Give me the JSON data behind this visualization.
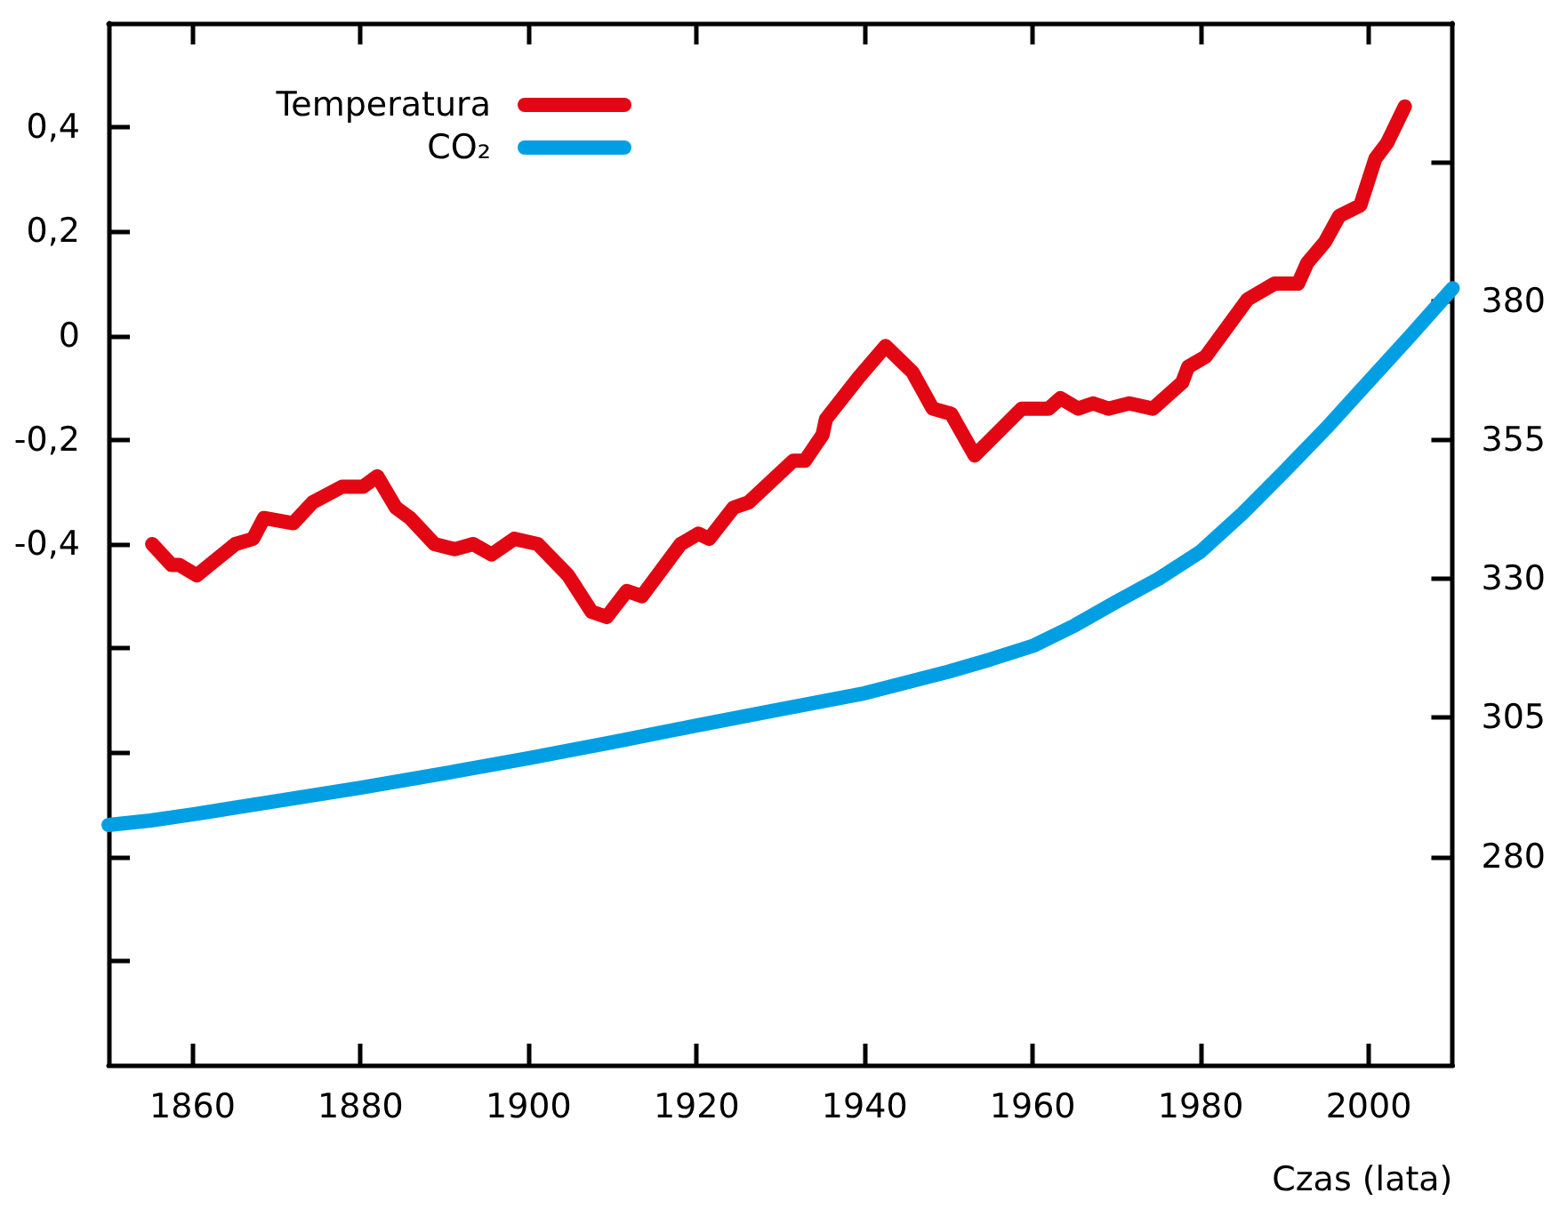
{
  "chart_data": {
    "type": "line",
    "xlabel": "Czas (lata)",
    "xlim": [
      1850,
      2010
    ],
    "xticks": [
      1860,
      1880,
      1900,
      1920,
      1940,
      1960,
      1980,
      2000
    ],
    "ylim": [
      -1.4,
      0.6
    ],
    "yticks": [
      {
        "value": -1.2,
        "label": null
      },
      {
        "value": -1.0,
        "label": null
      },
      {
        "value": -0.8,
        "label": null
      },
      {
        "value": -0.6,
        "label": null
      },
      {
        "value": -0.4,
        "label": "-0,4"
      },
      {
        "value": -0.2,
        "label": "-0,2"
      },
      0,
      {
        "value": 0.2,
        "label": "0,2"
      },
      {
        "value": 0.4,
        "label": "0,4"
      }
    ],
    "y2lim": [
      242.5,
      430
    ],
    "y2ticks": [
      280,
      305,
      330,
      355,
      380,
      {
        "value": 405,
        "label": null
      }
    ],
    "legend": "top left",
    "grid": false,
    "marker": "none",
    "line_style": "solid",
    "series": [
      {
        "name": "Temperatura",
        "color": "#e30613",
        "x": [
          1855.2,
          1857.5,
          1858.4,
          1860.5,
          1865.1,
          1867.2,
          1868.5,
          1872.0,
          1874.3,
          1877.8,
          1880.3,
          1882.0,
          1884.2,
          1885.9,
          1888.8,
          1891.2,
          1893.4,
          1895.6,
          1898.3,
          1901.1,
          1904.7,
          1907.5,
          1909.3,
          1911.7,
          1913.5,
          1918.1,
          1920.2,
          1921.5,
          1924.4,
          1926.2,
          1931.5,
          1932.9,
          1935.0,
          1935.4,
          1939.3,
          1942.5,
          1945.7,
          1948.1,
          1950.3,
          1953.1,
          1958.7,
          1961.9,
          1963.3,
          1965.4,
          1967.2,
          1969.0,
          1971.5,
          1974.3,
          1977.8,
          1978.5,
          1980.6,
          1985.6,
          1988.8,
          1991.6,
          1992.7,
          1994.8,
          1996.5,
          1999.0,
          2000.8,
          2002.2,
          2004.3
        ],
        "values": [
          -0.4,
          -0.44,
          -0.44,
          -0.46,
          -0.4,
          -0.39,
          -0.35,
          -0.36,
          -0.32,
          -0.29,
          -0.29,
          -0.27,
          -0.33,
          -0.35,
          -0.4,
          -0.41,
          -0.4,
          -0.42,
          -0.39,
          -0.4,
          -0.46,
          -0.53,
          -0.54,
          -0.49,
          -0.5,
          -0.4,
          -0.38,
          -0.39,
          -0.33,
          -0.32,
          -0.24,
          -0.24,
          -0.19,
          -0.16,
          -0.08,
          -0.02,
          -0.07,
          -0.14,
          -0.15,
          -0.23,
          -0.14,
          -0.14,
          -0.12,
          -0.14,
          -0.13,
          -0.14,
          -0.13,
          -0.14,
          -0.09,
          -0.06,
          -0.04,
          0.07,
          0.1,
          0.1,
          0.14,
          0.18,
          0.23,
          0.25,
          0.34,
          0.37,
          0.44
        ]
      },
      {
        "name": "CO₂",
        "color": "#009fe3",
        "axis": "y2",
        "x": [
          1850,
          1855,
          1860,
          1870,
          1880,
          1890,
          1900,
          1910,
          1920,
          1930,
          1940,
          1950,
          1955,
          1960,
          1965,
          1970,
          1975,
          1980,
          1985,
          1990,
          1995,
          2000,
          2005,
          2010
        ],
        "values": [
          285.7,
          286.5,
          287.6,
          290.0,
          292.4,
          295.0,
          297.7,
          300.6,
          303.6,
          306.5,
          309.4,
          313.3,
          315.5,
          317.9,
          321.6,
          325.9,
          330.0,
          334.9,
          341.8,
          349.4,
          357.2,
          365.5,
          373.8,
          382.3
        ]
      }
    ]
  }
}
